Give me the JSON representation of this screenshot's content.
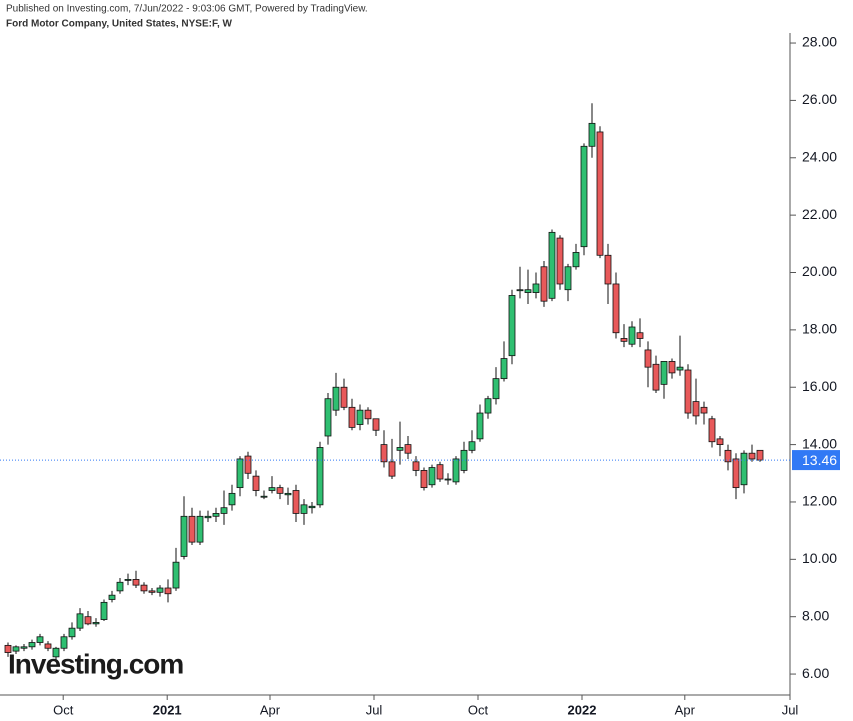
{
  "header": {
    "published": "Published on Investing.com, 7/Jun/2022 - 9:03:06 GMT, Powered by TradingView.",
    "symbol": "Ford Motor Company, United States, NYSE:F, W"
  },
  "logo": "Investing.com",
  "chart_data": {
    "type": "candlestick",
    "categories": [
      null,
      null,
      null,
      null,
      null,
      null,
      null,
      null,
      null,
      null,
      null,
      null,
      null,
      null,
      null,
      null,
      null,
      null,
      null,
      null,
      null,
      null,
      null,
      null,
      null,
      null,
      null,
      null,
      null,
      null,
      null,
      null,
      null,
      null,
      null,
      null,
      null,
      null,
      null,
      null,
      null,
      null,
      null,
      null,
      null,
      null,
      null,
      null,
      null,
      null,
      null,
      null,
      null,
      null,
      null,
      null,
      null,
      null,
      null,
      null,
      null,
      null,
      null,
      null,
      null,
      null,
      null,
      null,
      null,
      null,
      null,
      null,
      null,
      null,
      null,
      null,
      null,
      null,
      null,
      null,
      null,
      null,
      null,
      null,
      null,
      null,
      null,
      null,
      null,
      null,
      null,
      null,
      null,
      null,
      null
    ],
    "series": [
      {
        "open": [
          7.0,
          6.8,
          6.9,
          6.95,
          7.1,
          7.05,
          6.6,
          6.9,
          7.3,
          7.6,
          8.0,
          7.75,
          7.9,
          8.6,
          8.9,
          9.3,
          9.3,
          9.1,
          8.9,
          8.85,
          9.0,
          9.0,
          10.1,
          11.5,
          10.6,
          11.45,
          11.5,
          11.6,
          11.9,
          12.5,
          13.6,
          12.9,
          12.2,
          12.4,
          12.5,
          12.25,
          12.4,
          11.6,
          11.8,
          11.9,
          14.3,
          15.2,
          16.0,
          15.3,
          14.7,
          15.2,
          14.9,
          14.0,
          13.4,
          13.8,
          14.0,
          13.4,
          13.1,
          12.6,
          13.3,
          12.8,
          12.7,
          13.1,
          13.8,
          14.2,
          15.1,
          15.6,
          16.3,
          17.1,
          19.4,
          19.3,
          19.3,
          20.2,
          19.1,
          21.2,
          19.4,
          20.2,
          20.9,
          24.4,
          24.9,
          20.6,
          19.6,
          17.7,
          17.5,
          17.9,
          17.3,
          16.8,
          16.1,
          16.9,
          16.6,
          16.6,
          15.5,
          15.3,
          14.9,
          14.2,
          13.8,
          13.5,
          12.6,
          13.7,
          13.8
        ],
        "high": [
          7.1,
          7.0,
          7.05,
          7.2,
          7.4,
          7.15,
          6.95,
          7.4,
          7.8,
          8.3,
          8.2,
          7.95,
          8.6,
          8.9,
          9.35,
          9.5,
          9.6,
          9.2,
          9.0,
          9.1,
          9.3,
          10.4,
          12.2,
          11.8,
          11.7,
          11.7,
          11.8,
          12.4,
          12.6,
          13.6,
          13.75,
          13.1,
          12.4,
          12.9,
          12.6,
          12.5,
          12.6,
          12.1,
          12.0,
          14.1,
          15.8,
          16.5,
          16.3,
          15.6,
          15.4,
          15.3,
          14.9,
          14.5,
          14.2,
          14.8,
          14.3,
          13.6,
          13.2,
          13.3,
          13.4,
          13.0,
          13.6,
          14.1,
          14.5,
          15.4,
          15.7,
          16.7,
          17.6,
          19.4,
          20.2,
          20.1,
          20.0,
          20.4,
          21.5,
          21.3,
          20.3,
          21.0,
          24.5,
          25.9,
          25.1,
          21.0,
          20.0,
          18.2,
          18.3,
          18.4,
          17.6,
          17.1,
          16.9,
          17.0,
          17.8,
          16.8,
          16.3,
          15.5,
          15.0,
          14.3,
          14.0,
          13.7,
          13.8,
          14.0,
          13.8
        ],
        "low": [
          6.6,
          6.7,
          6.8,
          6.85,
          7.0,
          6.8,
          6.5,
          6.8,
          7.2,
          7.5,
          7.7,
          7.65,
          7.85,
          8.5,
          8.8,
          9.1,
          9.0,
          8.8,
          8.75,
          8.7,
          8.5,
          8.9,
          10.0,
          10.5,
          10.5,
          11.3,
          11.3,
          11.2,
          11.7,
          12.2,
          12.8,
          12.2,
          12.1,
          12.3,
          12.1,
          11.9,
          11.3,
          11.2,
          11.6,
          11.8,
          14.0,
          15.0,
          15.2,
          14.5,
          14.5,
          14.7,
          14.3,
          13.2,
          12.8,
          13.3,
          13.5,
          12.9,
          12.4,
          12.5,
          12.7,
          12.6,
          12.6,
          13.0,
          13.7,
          14.1,
          14.9,
          15.4,
          16.2,
          16.8,
          19.1,
          18.9,
          19.1,
          18.8,
          19.0,
          19.4,
          19.0,
          20.1,
          20.6,
          24.0,
          20.5,
          18.9,
          17.7,
          17.4,
          17.4,
          17.4,
          16.0,
          15.8,
          15.6,
          16.3,
          16.4,
          14.9,
          14.7,
          14.7,
          13.9,
          13.6,
          13.1,
          12.1,
          12.3,
          13.4,
          13.4
        ],
        "close": [
          6.75,
          6.95,
          6.95,
          7.1,
          7.3,
          6.9,
          6.9,
          7.3,
          7.6,
          8.1,
          7.75,
          7.8,
          8.5,
          8.75,
          9.2,
          9.3,
          9.1,
          8.9,
          8.85,
          9.0,
          8.8,
          9.9,
          11.5,
          10.6,
          11.5,
          11.5,
          11.6,
          11.8,
          12.3,
          13.5,
          13.0,
          12.4,
          12.2,
          12.5,
          12.3,
          12.3,
          11.6,
          11.9,
          11.85,
          13.9,
          15.6,
          16.0,
          15.3,
          14.6,
          15.2,
          14.9,
          14.5,
          13.4,
          12.9,
          13.9,
          13.7,
          13.1,
          12.5,
          13.2,
          12.8,
          12.8,
          13.5,
          13.8,
          14.1,
          15.1,
          15.6,
          16.3,
          17.0,
          19.2,
          19.4,
          19.4,
          19.6,
          19.0,
          21.4,
          19.6,
          20.2,
          20.7,
          24.4,
          25.2,
          20.6,
          19.6,
          17.9,
          17.6,
          18.1,
          17.7,
          16.7,
          15.9,
          16.9,
          16.5,
          16.7,
          15.1,
          15.0,
          15.1,
          14.1,
          14.0,
          13.4,
          12.5,
          13.7,
          13.5,
          13.46
        ]
      }
    ],
    "up_color": "#2fbf71",
    "down_color": "#e8595a",
    "last_price": 13.46,
    "last_price_color": "#3179f5",
    "xlim": [
      -1,
      97.75
    ],
    "xticks": [
      {
        "value": 6.9,
        "label": "Oct"
      },
      {
        "value": 19.9,
        "label": "2021"
      },
      {
        "value": 32.75,
        "label": "Apr"
      },
      {
        "value": 45.75,
        "label": "Jul"
      },
      {
        "value": 58.75,
        "label": "Oct"
      },
      {
        "value": 71.75,
        "label": "2022"
      },
      {
        "value": 84.6,
        "label": "Apr"
      },
      {
        "value": 97.75,
        "label": "Jul"
      }
    ],
    "ylim": [
      5.27,
      28.35
    ],
    "yticks": [
      {
        "value": 6,
        "label": "6.00"
      },
      {
        "value": 8,
        "label": "8.00"
      },
      {
        "value": 10,
        "label": "10.00"
      },
      {
        "value": 12,
        "label": "12.00"
      },
      {
        "value": 14,
        "label": "14.00"
      },
      {
        "value": 16,
        "label": "16.00"
      },
      {
        "value": 18,
        "label": "18.00"
      },
      {
        "value": 20,
        "label": "20.00"
      },
      {
        "value": 22,
        "label": "22.00"
      },
      {
        "value": 24,
        "label": "24.00"
      },
      {
        "value": 26,
        "label": "26.00"
      },
      {
        "value": 28,
        "label": "28.00"
      }
    ]
  }
}
